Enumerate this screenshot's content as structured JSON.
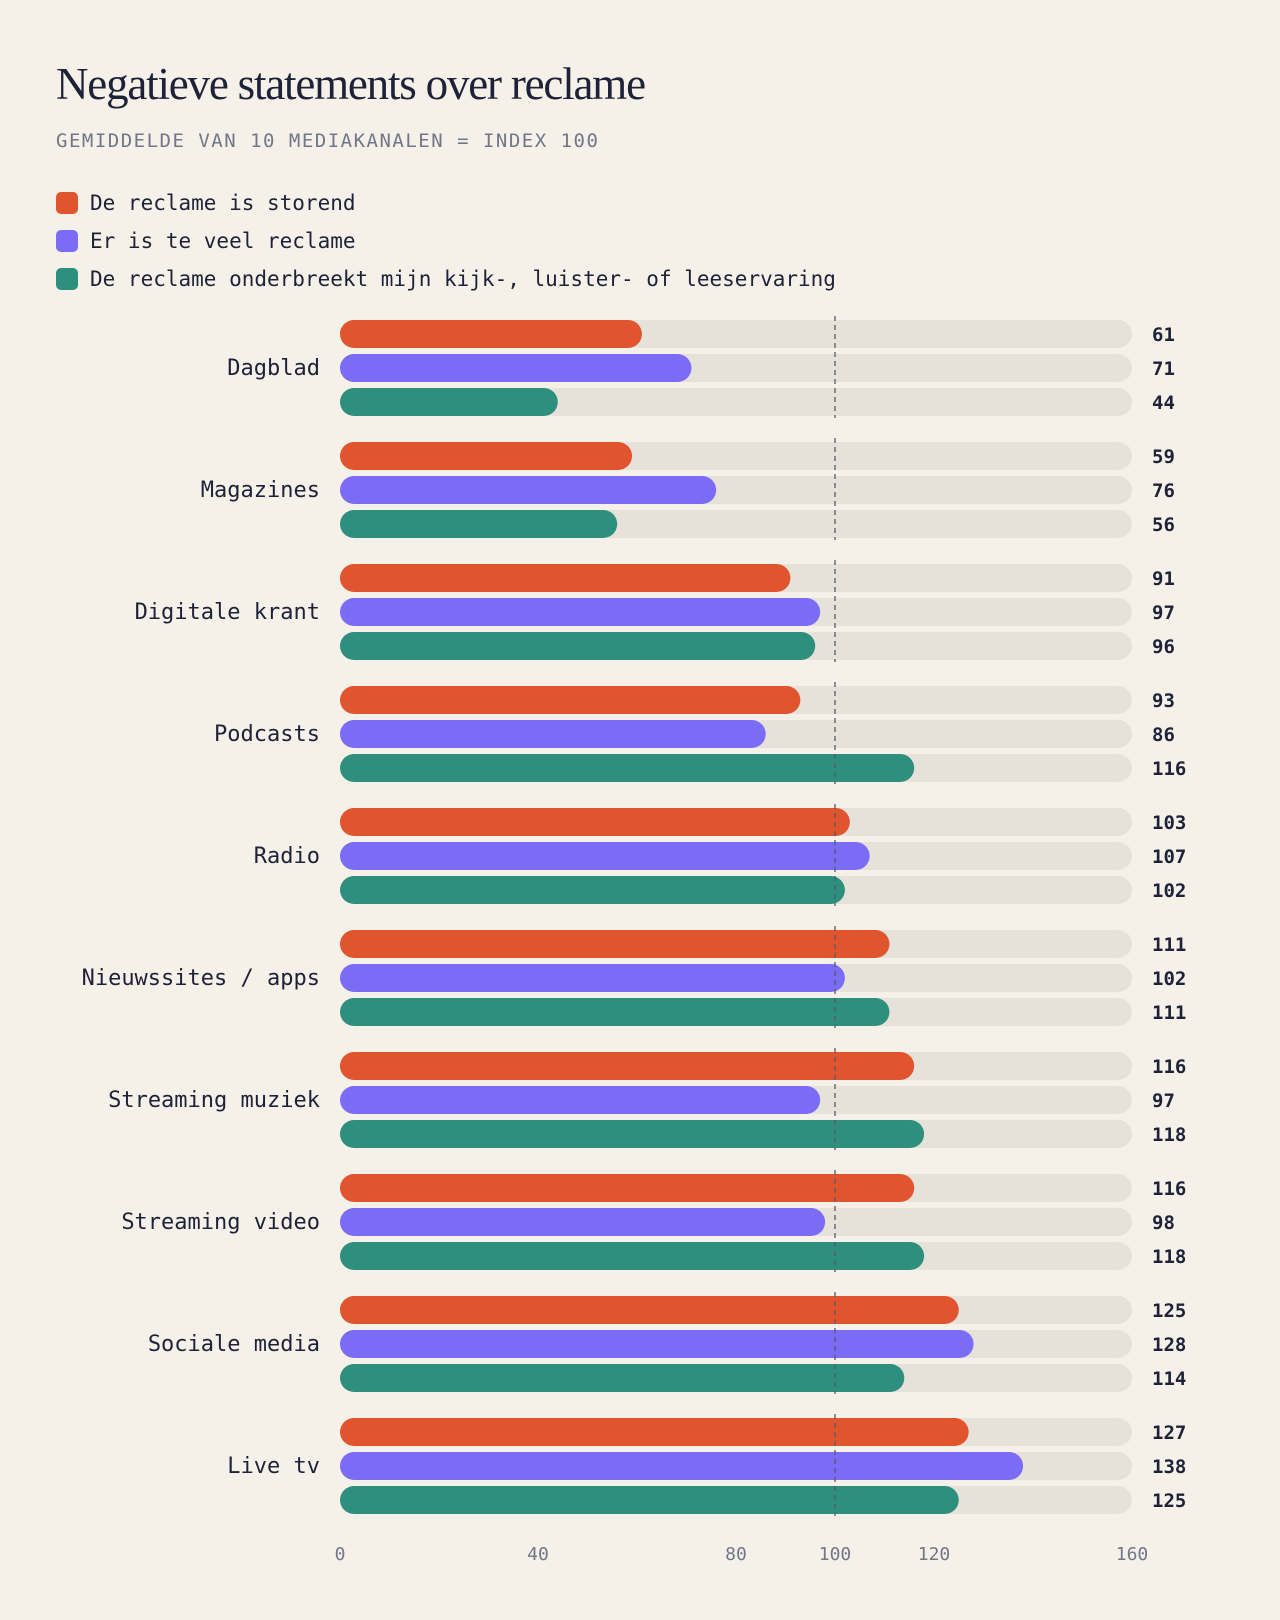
{
  "title": "Negatieve statements over reclame",
  "subtitle": "GEMIDDELDE VAN 10 MEDIAKANALEN = INDEX 100",
  "legend": [
    {
      "label": "De reclame is storend",
      "color": "#e0542e"
    },
    {
      "label": "Er is te veel reclame",
      "color": "#7b6cf6"
    },
    {
      "label": "De reclame onderbreekt mijn kijk-, luister- of leeservaring",
      "color": "#2e8f7e"
    }
  ],
  "chart_data": {
    "type": "bar",
    "orientation": "horizontal",
    "categories": [
      "Dagblad",
      "Magazines",
      "Digitale krant",
      "Podcasts",
      "Radio",
      "Nieuwssites / apps",
      "Streaming muziek",
      "Streaming video",
      "Sociale media",
      "Live tv"
    ],
    "series": [
      {
        "name": "De reclame is storend",
        "color": "#e0542e",
        "values": [
          61,
          59,
          91,
          93,
          103,
          111,
          116,
          116,
          125,
          127
        ]
      },
      {
        "name": "Er is te veel reclame",
        "color": "#7b6cf6",
        "values": [
          71,
          76,
          97,
          86,
          107,
          102,
          97,
          98,
          128,
          138
        ]
      },
      {
        "name": "De reclame onderbreekt mijn kijk-, luister- of leeservaring",
        "color": "#2e8f7e",
        "values": [
          44,
          56,
          96,
          116,
          102,
          111,
          118,
          118,
          114,
          125
        ]
      }
    ],
    "xlim": [
      0,
      160
    ],
    "xticks": [
      0,
      40,
      80,
      100,
      120,
      160
    ],
    "reference_line": 100,
    "track_color": "#e6e1d9"
  }
}
